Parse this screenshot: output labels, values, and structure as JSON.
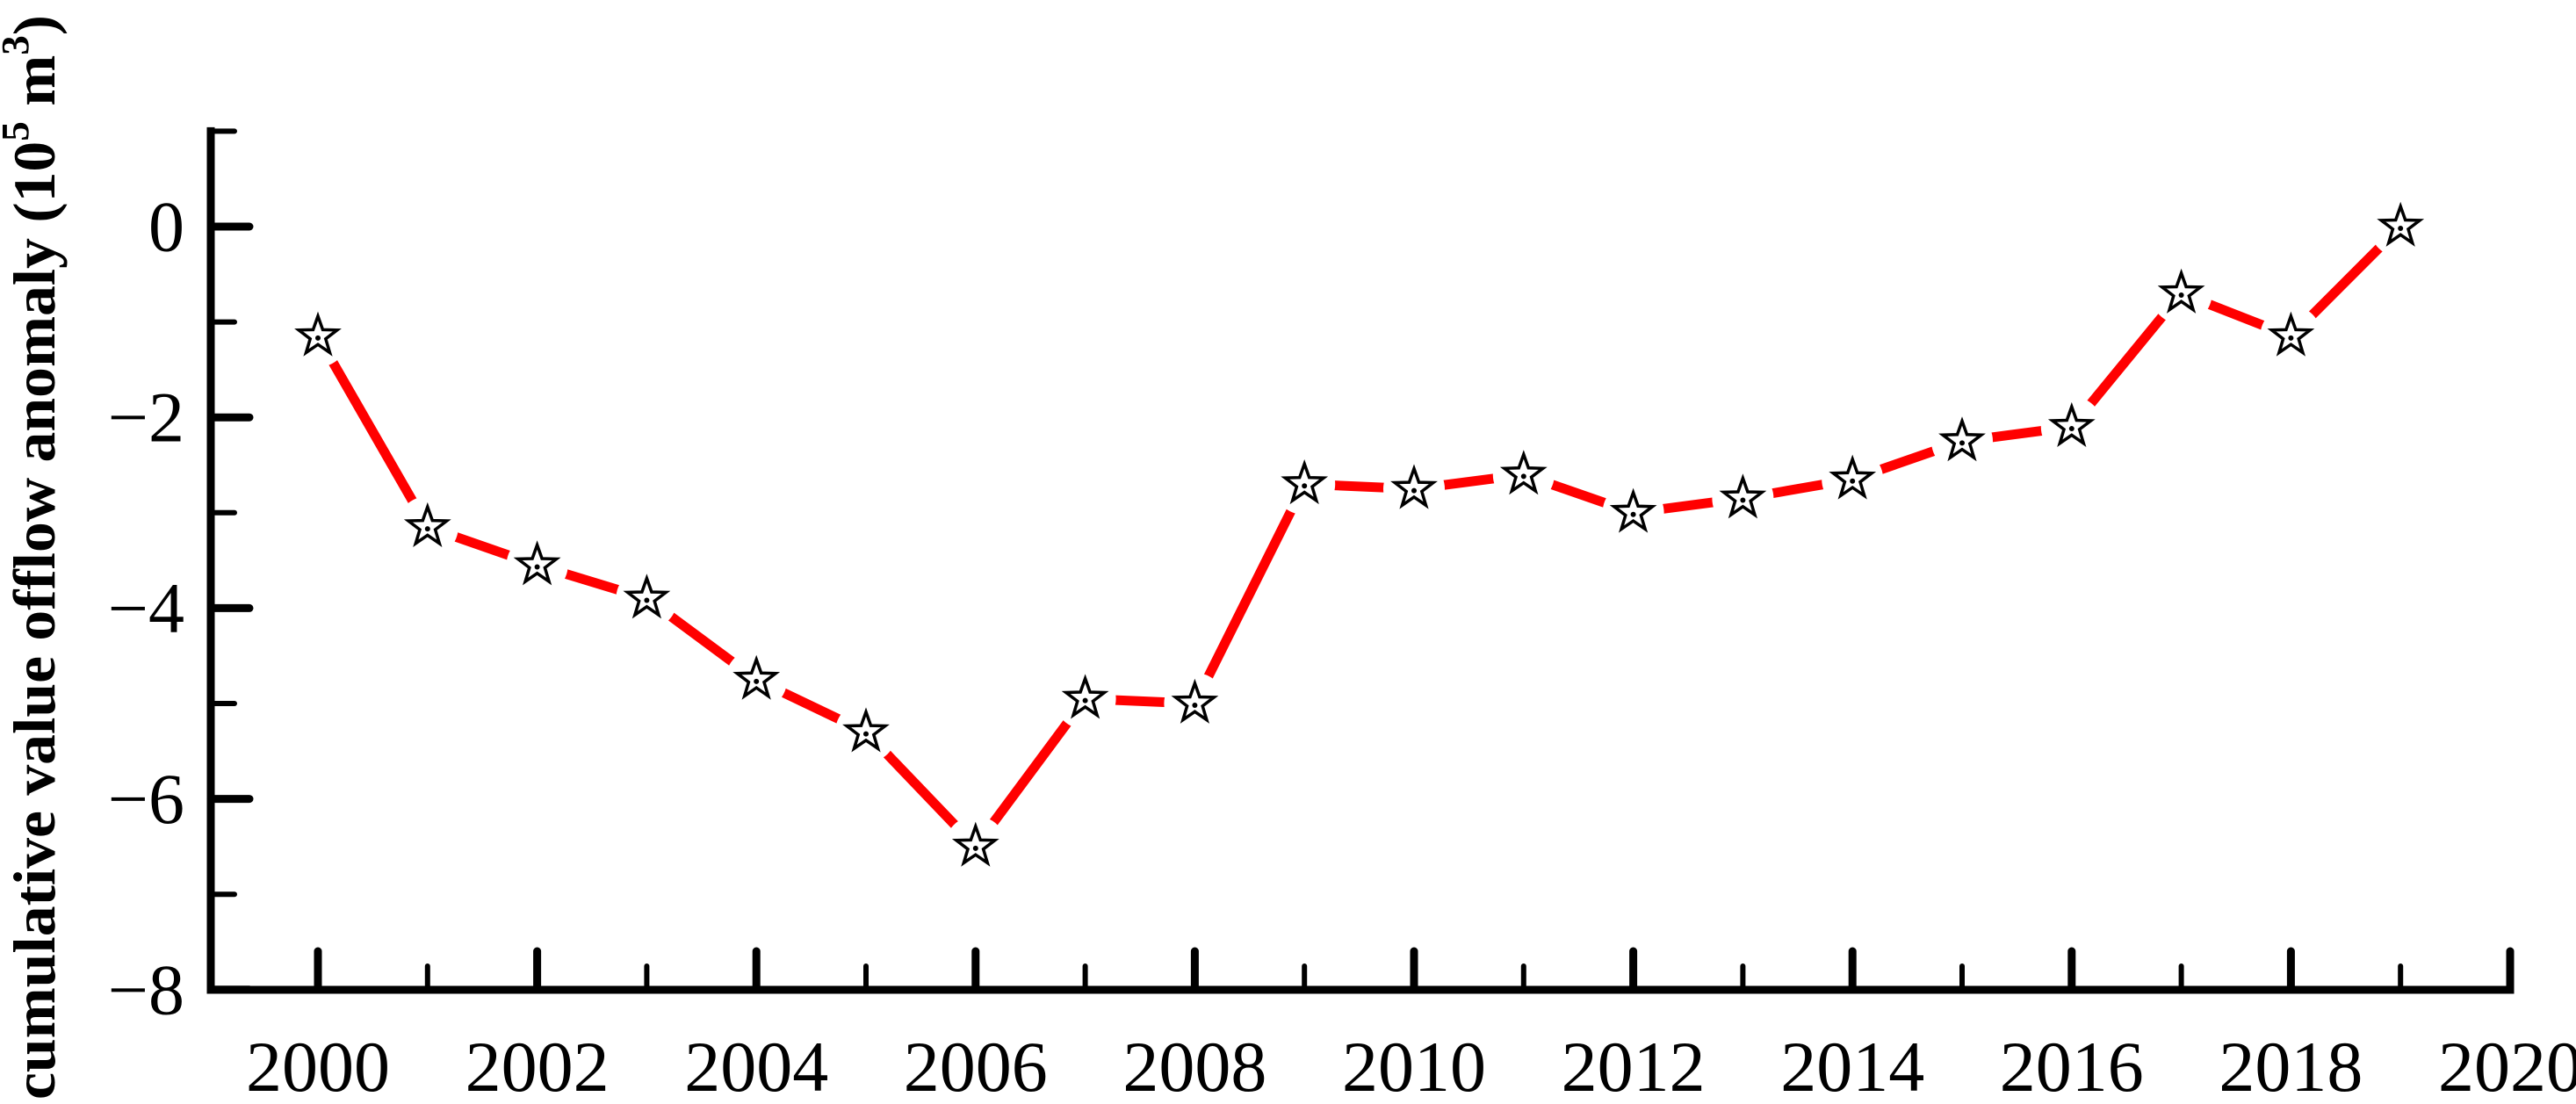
{
  "figure": {
    "background_color": "#ffffff",
    "axis_color": "#000000"
  },
  "chart_data": {
    "type": "line",
    "title": "",
    "xlabel": "",
    "ylabel": "cumulative value offlow anomaly (10⁵ m³)",
    "ylabel_parts": [
      {
        "text": "cumulative value offlow anomaly (10"
      },
      {
        "text": "5",
        "sup": true
      },
      {
        "text": " m"
      },
      {
        "text": "3",
        "sup": true
      },
      {
        "text": ")"
      }
    ],
    "x": [
      2000,
      2001,
      2002,
      2003,
      2004,
      2005,
      2006,
      2007,
      2008,
      2009,
      2010,
      2011,
      2012,
      2013,
      2014,
      2015,
      2016,
      2017,
      2018,
      2019
    ],
    "series": [
      {
        "name": "cumulative value offlow anomaly",
        "values": [
          -1.15,
          -3.15,
          -3.55,
          -3.9,
          -4.75,
          -5.3,
          -6.5,
          -4.95,
          -5.0,
          -2.7,
          -2.75,
          -2.6,
          -3.0,
          -2.85,
          -2.65,
          -2.25,
          -2.1,
          -0.7,
          -1.15,
          0.0
        ],
        "line_color": "#ff0000",
        "line_style": "solid",
        "marker": "open-star-with-center-dot",
        "marker_fill": "#ffffff",
        "marker_edge": "#000000"
      }
    ],
    "xlim": [
      1999,
      2020
    ],
    "ylim": [
      -8,
      1
    ],
    "x_major_ticks": [
      2000,
      2002,
      2004,
      2006,
      2008,
      2010,
      2012,
      2014,
      2016,
      2018,
      2020
    ],
    "x_major_tick_labels": [
      "2000",
      "2002",
      "2004",
      "2006",
      "2008",
      "2010",
      "2012",
      "2014",
      "2016",
      "2018",
      "2020"
    ],
    "x_minor_ticks": [
      2001,
      2003,
      2005,
      2007,
      2009,
      2011,
      2013,
      2015,
      2017,
      2019
    ],
    "y_major_ticks": [
      0,
      -2,
      -4,
      -6,
      -8
    ],
    "y_major_tick_labels": [
      "0",
      "−2",
      "−4",
      "−6",
      "−8"
    ],
    "y_minor_ticks": [
      1,
      -1,
      -3,
      -5,
      -7
    ],
    "grid": false,
    "legend": null
  }
}
